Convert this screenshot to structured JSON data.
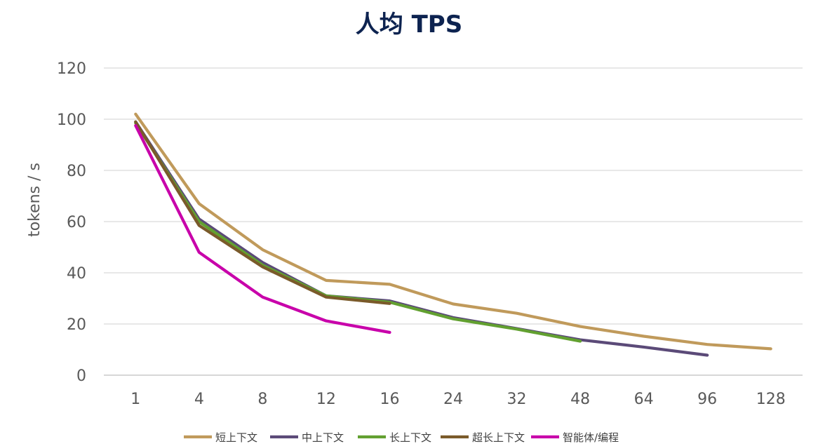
{
  "chart_data": {
    "type": "line",
    "title": "人均 TPS",
    "xlabel": "",
    "ylabel": "tokens / s",
    "categories": [
      "1",
      "4",
      "8",
      "12",
      "16",
      "24",
      "32",
      "48",
      "64",
      "96",
      "128"
    ],
    "ylim": [
      0,
      120
    ],
    "yticks": [
      0,
      20,
      40,
      60,
      80,
      100,
      120
    ],
    "grid": true,
    "legend_position": "bottom",
    "series": [
      {
        "name": "短上下文",
        "color": "#c09a5b",
        "values": [
          102,
          67,
          49,
          37,
          35.5,
          27.8,
          24.2,
          19,
          15.2,
          12,
          10.3
        ]
      },
      {
        "name": "中上下文",
        "color": "#5b4a78",
        "values": [
          99,
          61,
          44,
          31,
          29,
          22.5,
          18.2,
          13.8,
          11,
          7.8,
          null
        ]
      },
      {
        "name": "长上下文",
        "color": "#62a030",
        "values": [
          98.5,
          60,
          43,
          31,
          28.5,
          22,
          18,
          13.3,
          null,
          null,
          null
        ]
      },
      {
        "name": "超长上下文",
        "color": "#7a5a2a",
        "values": [
          99,
          58.5,
          42.3,
          30.5,
          28,
          null,
          null,
          null,
          null,
          null,
          null
        ]
      },
      {
        "name": "智能体/编程",
        "color": "#c800aa",
        "values": [
          97.5,
          48,
          30.5,
          21.2,
          16.7,
          null,
          null,
          null,
          null,
          null,
          null
        ]
      }
    ]
  }
}
